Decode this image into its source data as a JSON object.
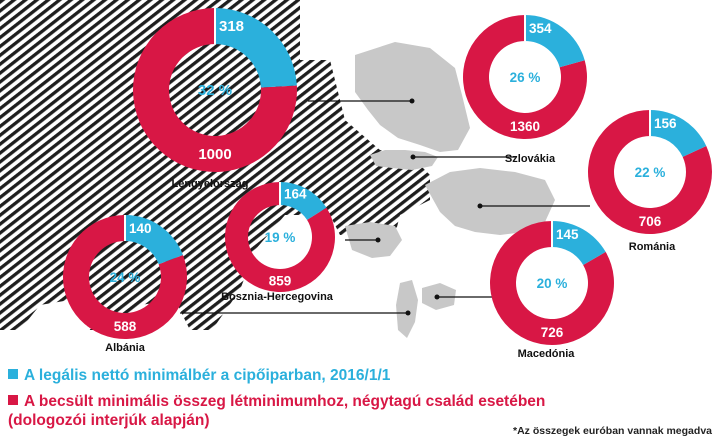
{
  "chart_data": {
    "type": "donut-map",
    "countries": [
      {
        "name": "Lengyelország",
        "legal": 318,
        "estimated": 1000,
        "share_pct": "32 %"
      },
      {
        "name": "Szlovákia",
        "legal": 354,
        "estimated": 1360,
        "share_pct": "26 %"
      },
      {
        "name": "Románia",
        "legal": 156,
        "estimated": 706,
        "share_pct": "22 %"
      },
      {
        "name": "Bosznia-Hercegovina",
        "legal": 164,
        "estimated": 859,
        "share_pct": "19 %"
      },
      {
        "name": "Albánia",
        "legal": 140,
        "estimated": 588,
        "share_pct": "24 %"
      },
      {
        "name": "Macedónia",
        "legal": 145,
        "estimated": 726,
        "share_pct": "20 %"
      }
    ],
    "legend": {
      "legal": "A legális nettó minimálbér a cipőiparban, 2016/1/1",
      "estimated_line1": "A becsült minimális összeg létminimumhoz, négytagú család esetében",
      "estimated_line2": "(dologozói interjúk alapján)"
    },
    "footnote": "*Az összegek euróban vannak megadva"
  },
  "colors": {
    "legal": "#2bb0dc",
    "estimated": "#d81745",
    "map_land": "#c8c8c8",
    "map_hatch": "#1e1e1e",
    "leader": "#111111"
  }
}
